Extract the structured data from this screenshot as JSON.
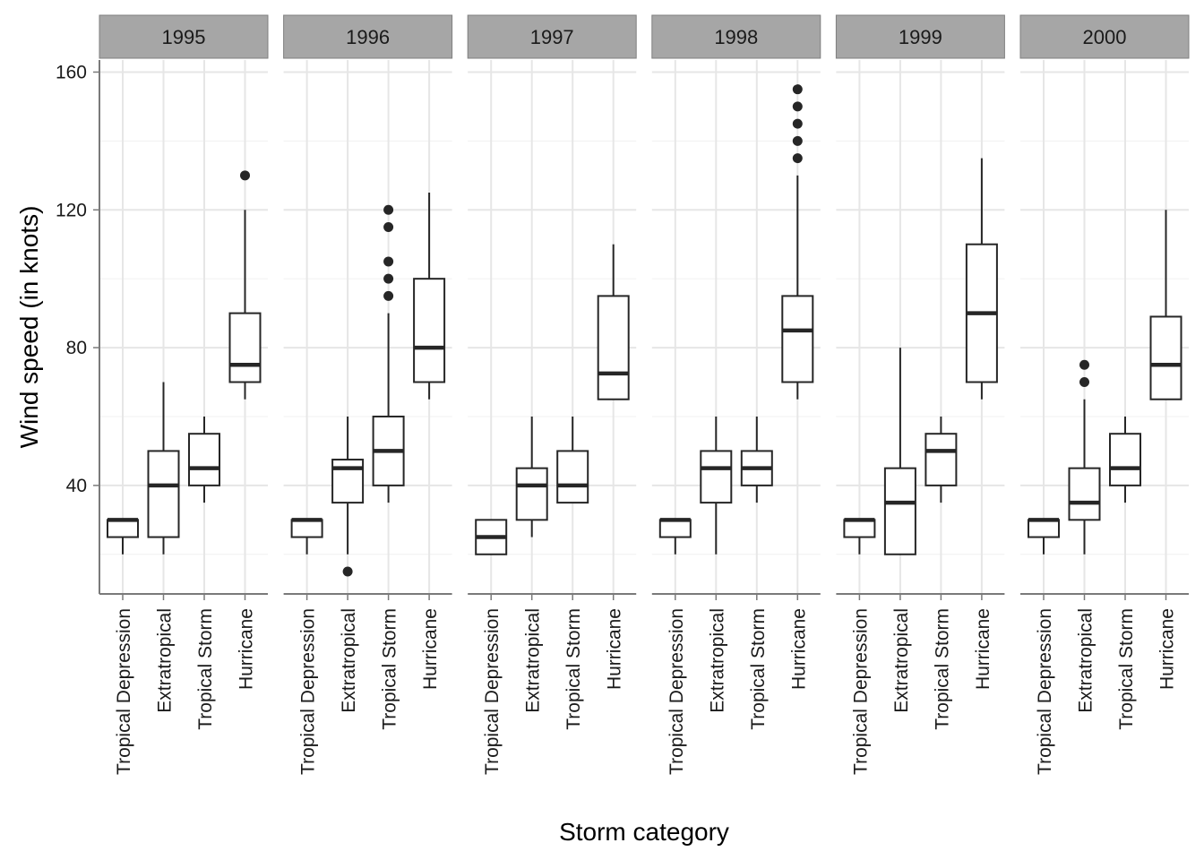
{
  "chart_data": {
    "type": "boxplot",
    "xlabel": "Storm category",
    "ylabel": "Wind speed (in knots)",
    "ylim": [
      8.5,
      163.5
    ],
    "yticks": [
      40,
      80,
      120,
      160
    ],
    "categories": [
      "Tropical Depression",
      "Extratropical",
      "Tropical Storm",
      "Hurricane"
    ],
    "grid": true,
    "facets": [
      {
        "label": "1995",
        "boxes": [
          {
            "category": "Tropical Depression",
            "min": 20,
            "q1": 25,
            "median": 30,
            "q3": 30,
            "max": 30,
            "outliers": []
          },
          {
            "category": "Extratropical",
            "min": 20,
            "q1": 25,
            "median": 40,
            "q3": 50,
            "max": 70,
            "outliers": []
          },
          {
            "category": "Tropical Storm",
            "min": 35,
            "q1": 40,
            "median": 45,
            "q3": 55,
            "max": 60,
            "outliers": []
          },
          {
            "category": "Hurricane",
            "min": 65,
            "q1": 70,
            "median": 75,
            "q3": 90,
            "max": 120,
            "outliers": [
              130
            ]
          }
        ]
      },
      {
        "label": "1996",
        "boxes": [
          {
            "category": "Tropical Depression",
            "min": 20,
            "q1": 25,
            "median": 30,
            "q3": 30,
            "max": 30,
            "outliers": []
          },
          {
            "category": "Extratropical",
            "min": 20,
            "q1": 35,
            "median": 45,
            "q3": 47.5,
            "max": 60,
            "outliers": [
              15
            ]
          },
          {
            "category": "Tropical Storm",
            "min": 35,
            "q1": 40,
            "median": 50,
            "q3": 60,
            "max": 90,
            "outliers": [
              95,
              100,
              105,
              115,
              120
            ]
          },
          {
            "category": "Hurricane",
            "min": 65,
            "q1": 70,
            "median": 80,
            "q3": 100,
            "max": 125,
            "outliers": []
          }
        ]
      },
      {
        "label": "1997",
        "boxes": [
          {
            "category": "Tropical Depression",
            "min": 20,
            "q1": 20,
            "median": 25,
            "q3": 30,
            "max": 30,
            "outliers": []
          },
          {
            "category": "Extratropical",
            "min": 25,
            "q1": 30,
            "median": 40,
            "q3": 45,
            "max": 60,
            "outliers": []
          },
          {
            "category": "Tropical Storm",
            "min": 35,
            "q1": 35,
            "median": 40,
            "q3": 50,
            "max": 60,
            "outliers": []
          },
          {
            "category": "Hurricane",
            "min": 65,
            "q1": 65,
            "median": 72.5,
            "q3": 95,
            "max": 110,
            "outliers": []
          }
        ]
      },
      {
        "label": "1998",
        "boxes": [
          {
            "category": "Tropical Depression",
            "min": 20,
            "q1": 25,
            "median": 30,
            "q3": 30,
            "max": 30,
            "outliers": []
          },
          {
            "category": "Extratropical",
            "min": 20,
            "q1": 35,
            "median": 45,
            "q3": 50,
            "max": 60,
            "outliers": []
          },
          {
            "category": "Tropical Storm",
            "min": 35,
            "q1": 40,
            "median": 45,
            "q3": 50,
            "max": 60,
            "outliers": []
          },
          {
            "category": "Hurricane",
            "min": 65,
            "q1": 70,
            "median": 85,
            "q3": 95,
            "max": 130,
            "outliers": [
              135,
              140,
              145,
              150,
              155
            ]
          }
        ]
      },
      {
        "label": "1999",
        "boxes": [
          {
            "category": "Tropical Depression",
            "min": 20,
            "q1": 25,
            "median": 30,
            "q3": 30,
            "max": 30,
            "outliers": []
          },
          {
            "category": "Extratropical",
            "min": 20,
            "q1": 20,
            "median": 35,
            "q3": 45,
            "max": 80,
            "outliers": []
          },
          {
            "category": "Tropical Storm",
            "min": 35,
            "q1": 40,
            "median": 50,
            "q3": 55,
            "max": 60,
            "outliers": []
          },
          {
            "category": "Hurricane",
            "min": 65,
            "q1": 70,
            "median": 90,
            "q3": 110,
            "max": 135,
            "outliers": []
          }
        ]
      },
      {
        "label": "2000",
        "boxes": [
          {
            "category": "Tropical Depression",
            "min": 20,
            "q1": 25,
            "median": 30,
            "q3": 30,
            "max": 30,
            "outliers": []
          },
          {
            "category": "Extratropical",
            "min": 20,
            "q1": 30,
            "median": 35,
            "q3": 45,
            "max": 65,
            "outliers": [
              70,
              75
            ]
          },
          {
            "category": "Tropical Storm",
            "min": 35,
            "q1": 40,
            "median": 45,
            "q3": 55,
            "max": 60,
            "outliers": []
          },
          {
            "category": "Hurricane",
            "min": 65,
            "q1": 65,
            "median": 75,
            "q3": 89,
            "max": 120,
            "outliers": []
          }
        ]
      }
    ]
  }
}
